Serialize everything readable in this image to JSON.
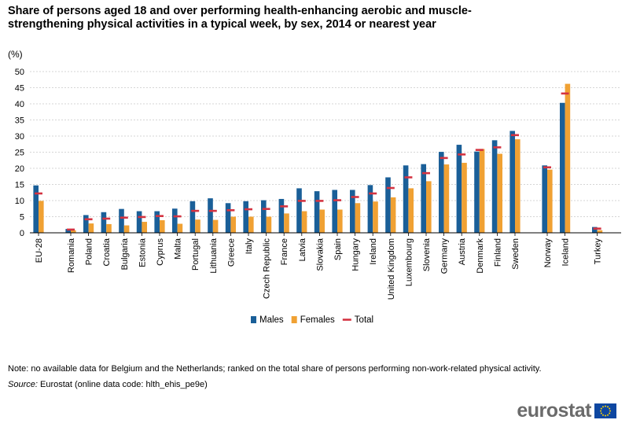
{
  "chart_data": {
    "type": "bar",
    "title": "Share of persons aged 18 and over performing health-enhancing aerobic and muscle-strengthening physical activities in a typical week, by sex, 2014 or nearest year",
    "unit": "(%)",
    "ylim": [
      0,
      50
    ],
    "yticks": [
      0,
      5,
      10,
      15,
      20,
      25,
      30,
      35,
      40,
      45,
      50
    ],
    "grid": true,
    "legend_position": "bottom",
    "groups": [
      [
        "EU-28"
      ],
      [
        "Romania",
        "Poland",
        "Croatia",
        "Bulgaria",
        "Estonia",
        "Cyprus",
        "Malta",
        "Portugal",
        "Lithuania",
        "Greece",
        "Italy",
        "Czech Republic",
        "France",
        "Latvia",
        "Slovakia",
        "Spain",
        "Hungary",
        "Ireland",
        "United Kingdom",
        "Luxembourg",
        "Slovenia",
        "Germany",
        "Austria",
        "Denmark",
        "Finland",
        "Sweden"
      ],
      [
        "Norway",
        "Iceland"
      ],
      [
        "Turkey"
      ]
    ],
    "categories": [
      "EU-28",
      "Romania",
      "Poland",
      "Croatia",
      "Bulgaria",
      "Estonia",
      "Cyprus",
      "Malta",
      "Portugal",
      "Lithuania",
      "Greece",
      "Italy",
      "Czech Republic",
      "France",
      "Latvia",
      "Slovakia",
      "Spain",
      "Hungary",
      "Ireland",
      "United Kingdom",
      "Luxembourg",
      "Slovenia",
      "Germany",
      "Austria",
      "Denmark",
      "Finland",
      "Sweden",
      "Norway",
      "Iceland",
      "Turkey"
    ],
    "series": [
      {
        "name": "Males",
        "kind": "bar",
        "color": "#1a5f98",
        "values": [
          14.7,
          1.2,
          5.5,
          6.4,
          7.4,
          6.7,
          6.7,
          7.5,
          9.8,
          10.7,
          9.2,
          9.8,
          10.1,
          10.5,
          13.8,
          12.9,
          13.3,
          13.3,
          14.8,
          17.2,
          20.9,
          21.3,
          25.1,
          27.3,
          25.2,
          28.7,
          31.6,
          20.9,
          40.3,
          1.8
        ]
      },
      {
        "name": "Females",
        "kind": "bar",
        "color": "#f0a133",
        "values": [
          9.9,
          0.8,
          2.9,
          2.7,
          2.3,
          3.4,
          3.9,
          2.8,
          4.1,
          4.0,
          5.0,
          5.0,
          5.0,
          6.0,
          6.7,
          7.2,
          7.2,
          9.2,
          9.7,
          11.0,
          13.8,
          16.0,
          21.2,
          21.7,
          26.0,
          24.5,
          29.0,
          19.6,
          46.2,
          0.8
        ]
      },
      {
        "name": "Total",
        "kind": "marker",
        "color": "#d43341",
        "values": [
          12.2,
          1.0,
          4.2,
          4.4,
          4.7,
          4.9,
          5.2,
          5.1,
          6.8,
          6.8,
          7.0,
          7.3,
          7.4,
          8.2,
          9.9,
          9.9,
          10.1,
          11.1,
          12.2,
          13.9,
          17.2,
          18.5,
          23.2,
          24.3,
          25.7,
          26.5,
          30.3,
          20.3,
          43.2,
          1.3
        ]
      }
    ]
  },
  "note": "Note: no available data for Belgium and the Netherlands; ranked on the total share of persons performing non-work-related physical activity.",
  "source": {
    "label": "Source:",
    "text": "Eurostat (online data code: hlth_ehis_pe9e)"
  },
  "brand": {
    "name": "eurostat"
  }
}
